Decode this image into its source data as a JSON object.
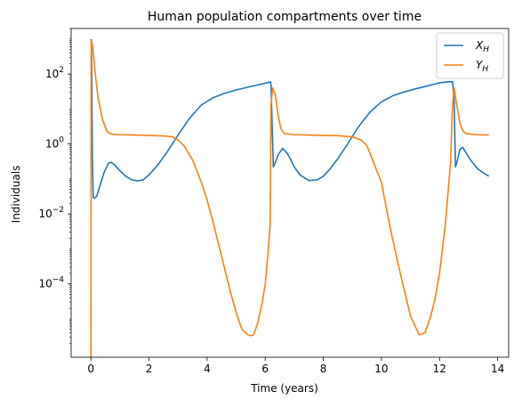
{
  "colors": {
    "background": "#ffffff",
    "axes": "#000000",
    "legend_frame": "#cccccc",
    "series_xh": "#1f77b4",
    "series_yh": "#ff7f0e"
  },
  "chart_data": {
    "type": "line",
    "title": "Human population compartments over time",
    "xlabel": "Time (years)",
    "ylabel": "Individuals",
    "xscale": "linear",
    "yscale": "log",
    "xlim": [
      -0.68,
      14.38
    ],
    "ylim": [
      8e-07,
      2000
    ],
    "grid": false,
    "legend_position": "top-right",
    "x_ticks": [
      {
        "value": 0,
        "label": "0"
      },
      {
        "value": 2,
        "label": "2"
      },
      {
        "value": 4,
        "label": "4"
      },
      {
        "value": 6,
        "label": "6"
      },
      {
        "value": 8,
        "label": "8"
      },
      {
        "value": 10,
        "label": "10"
      },
      {
        "value": 12,
        "label": "12"
      },
      {
        "value": 14,
        "label": "14"
      }
    ],
    "y_ticks": [
      {
        "value": 0.0001,
        "base": "10",
        "exp": "−4"
      },
      {
        "value": 0.01,
        "base": "10",
        "exp": "−2"
      },
      {
        "value": 1,
        "base": "10",
        "exp": "0"
      },
      {
        "value": 100,
        "base": "10",
        "exp": "2"
      }
    ],
    "series": [
      {
        "name": "X",
        "subscript": "H",
        "color": "#1f77b4",
        "x": [
          0,
          0.02,
          0.05,
          0.08,
          0.12,
          0.2,
          0.3,
          0.45,
          0.6,
          0.7,
          0.8,
          1.0,
          1.2,
          1.4,
          1.6,
          1.8,
          2.0,
          2.3,
          2.6,
          3.0,
          3.4,
          3.8,
          4.2,
          4.6,
          5.0,
          5.4,
          5.8,
          6.1,
          6.18,
          6.2,
          6.28,
          6.35,
          6.45,
          6.6,
          6.75,
          6.85,
          7.0,
          7.2,
          7.5,
          7.8,
          8.0,
          8.2,
          8.5,
          8.8,
          9.2,
          9.6,
          10.0,
          10.4,
          10.8,
          11.2,
          11.6,
          12.0,
          12.3,
          12.45,
          12.5,
          12.55,
          12.62,
          12.7,
          12.8,
          12.95,
          13.1,
          13.3,
          13.5,
          13.7
        ],
        "y": [
          1000,
          900,
          0.5,
          0.03,
          0.028,
          0.032,
          0.06,
          0.15,
          0.28,
          0.3,
          0.26,
          0.17,
          0.12,
          0.095,
          0.088,
          0.095,
          0.13,
          0.25,
          0.55,
          1.8,
          5.5,
          13,
          21,
          28,
          35,
          42,
          50,
          57,
          60,
          50,
          0.22,
          0.3,
          0.5,
          0.75,
          0.55,
          0.4,
          0.22,
          0.13,
          0.09,
          0.095,
          0.12,
          0.18,
          0.38,
          0.9,
          3,
          8,
          16,
          24,
          31,
          38,
          46,
          56,
          60,
          60,
          20,
          0.22,
          0.35,
          0.7,
          0.8,
          0.5,
          0.32,
          0.2,
          0.15,
          0.12
        ]
      },
      {
        "name": "Y",
        "subscript": "H",
        "color": "#ff7f0e",
        "x": [
          0,
          0.01,
          0.03,
          0.06,
          0.1,
          0.15,
          0.25,
          0.4,
          0.55,
          0.65,
          0.75,
          1.0,
          1.5,
          2.0,
          2.5,
          2.8,
          3.0,
          3.2,
          3.5,
          3.8,
          4.0,
          4.2,
          4.5,
          4.8,
          5.0,
          5.2,
          5.4,
          5.5,
          5.6,
          5.75,
          5.9,
          6.0,
          6.1,
          6.17,
          6.2,
          6.25,
          6.35,
          6.45,
          6.55,
          6.65,
          7.0,
          7.5,
          8.0,
          8.5,
          9.0,
          9.3,
          9.5,
          10.0,
          10.3,
          10.6,
          11.0,
          11.3,
          11.5,
          11.7,
          11.85,
          12.0,
          12.2,
          12.38,
          12.44,
          12.5,
          12.6,
          12.7,
          12.8,
          12.9,
          13.2,
          13.7
        ],
        "y": [
          8e-07,
          900,
          800,
          600,
          300,
          100,
          20,
          5,
          2.3,
          2.0,
          1.9,
          1.85,
          1.8,
          1.75,
          1.7,
          1.6,
          1.3,
          0.9,
          0.35,
          0.08,
          0.025,
          0.006,
          0.0006,
          6e-05,
          1.5e-05,
          5e-06,
          3.5e-06,
          3.3e-06,
          3.5e-06,
          8e-06,
          3e-05,
          0.0001,
          0.0008,
          0.005,
          12,
          40,
          25,
          6,
          2.6,
          2.0,
          1.85,
          1.8,
          1.75,
          1.72,
          1.6,
          1.3,
          0.9,
          0.08,
          0.004,
          0.0003,
          1.2e-05,
          3.5e-06,
          4e-06,
          1.2e-05,
          4e-05,
          0.0002,
          0.005,
          0.3,
          10,
          40,
          12,
          4,
          2.4,
          2.0,
          1.85,
          1.8
        ]
      }
    ]
  }
}
